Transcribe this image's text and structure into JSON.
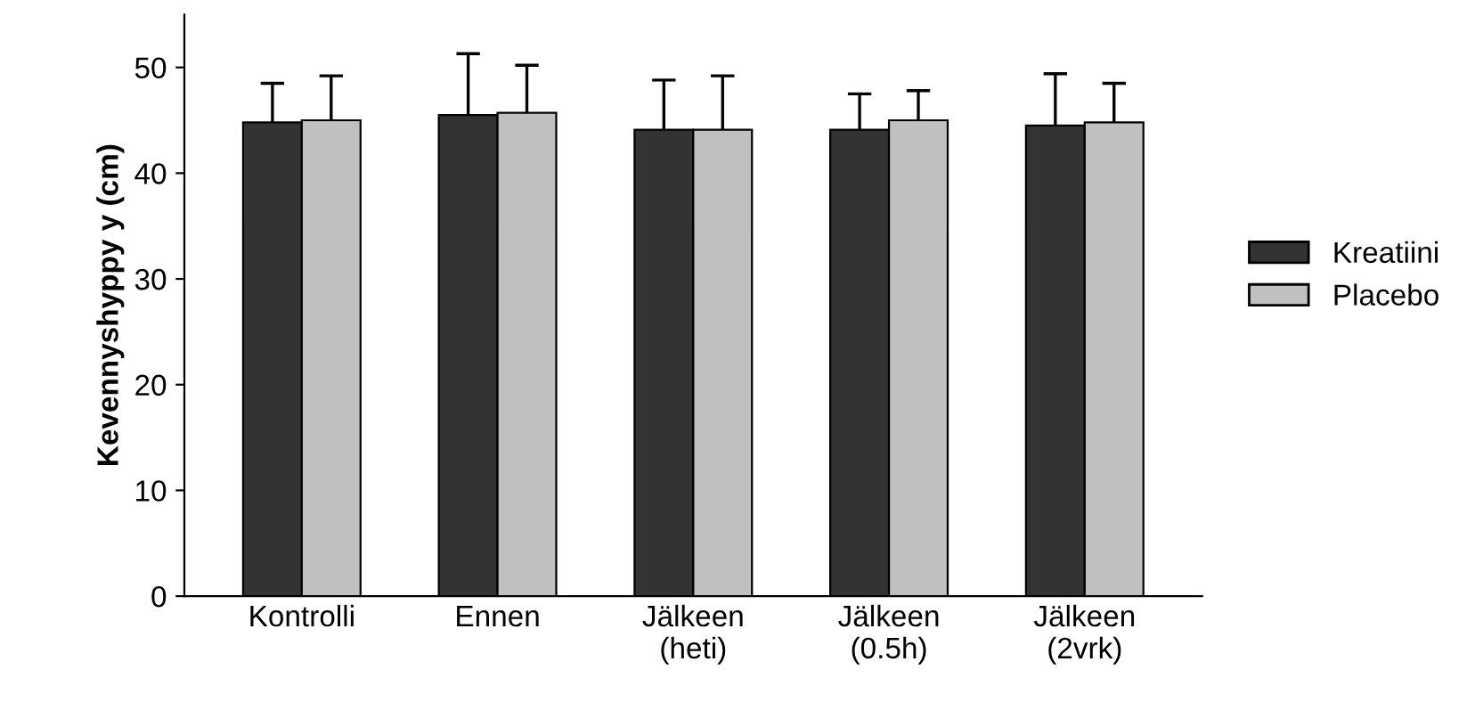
{
  "chart_data": {
    "type": "bar",
    "ylabel": "Kevennyshyppy y (cm)",
    "categories": [
      "Kontrolli",
      "Ennen",
      "Jälkeen\n(heti)",
      "Jälkeen\n(0.5h)",
      "Jälkeen\n(2vrk)"
    ],
    "series": [
      {
        "name": "Kreatiini",
        "color": "#333333",
        "values": [
          44.8,
          45.5,
          44.1,
          44.1,
          44.5
        ],
        "errors": [
          [
            44.8,
            48.5
          ],
          [
            45.5,
            51.3
          ],
          [
            44.1,
            48.8
          ],
          [
            44.1,
            47.5
          ],
          [
            44.5,
            49.4
          ]
        ]
      },
      {
        "name": "Placebo",
        "color": "#c0c0c0",
        "values": [
          45.0,
          45.7,
          44.1,
          45.0,
          44.8
        ],
        "errors": [
          [
            45.0,
            49.2
          ],
          [
            45.7,
            50.2
          ],
          [
            44.1,
            49.2
          ],
          [
            45.0,
            47.8
          ],
          [
            44.8,
            48.5
          ]
        ]
      }
    ],
    "ylim": [
      0,
      55
    ],
    "yticks": [
      0,
      10,
      20,
      30,
      40,
      50
    ],
    "grid": false,
    "legend": "right"
  }
}
